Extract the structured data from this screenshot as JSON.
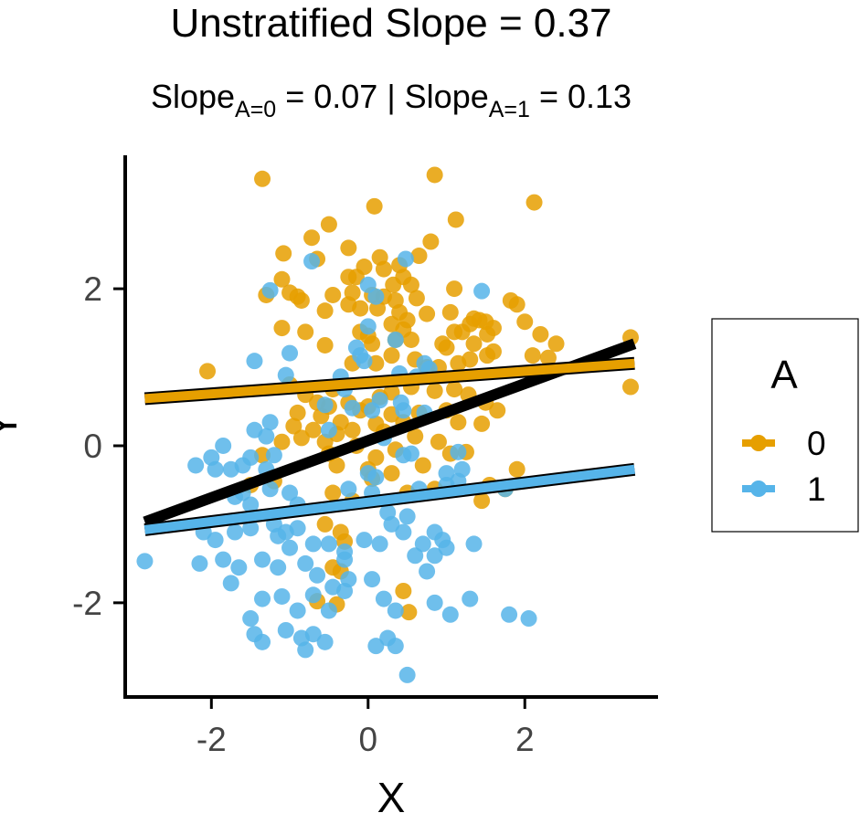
{
  "chart_data": {
    "type": "scatter",
    "title": "Unstratified Slope = 0.37",
    "subtitle": {
      "prefix": "Slope",
      "sub0": "A=0",
      "mid": " = 0.07 | Slope",
      "sub1": "A=1",
      "suffix": " = 0.13"
    },
    "xlabel": "X",
    "ylabel": "Y",
    "xlim": [
      -3.1,
      3.7
    ],
    "ylim": [
      -3.2,
      3.7
    ],
    "xticks": [
      {
        "value": -2,
        "label": "-2"
      },
      {
        "value": 0,
        "label": "0"
      },
      {
        "value": 2,
        "label": "2"
      }
    ],
    "yticks": [
      {
        "value": -2,
        "label": "-2"
      },
      {
        "value": 0,
        "label": "0"
      },
      {
        "value": 2,
        "label": "2"
      }
    ],
    "legend": {
      "title": "A",
      "position": "right",
      "entries": [
        {
          "label": "0",
          "color": "#E69F00"
        },
        {
          "label": "1",
          "color": "#56B4E9"
        }
      ]
    },
    "colors": {
      "A0": "#E69F00",
      "A1": "#56B4E9",
      "overall": "#000000"
    },
    "grid": false,
    "series": [
      {
        "name": "0",
        "color": "#E69F00",
        "points": [
          [
            -1.35,
            3.4
          ],
          [
            0.85,
            3.45
          ],
          [
            2.12,
            3.1
          ],
          [
            0.08,
            3.05
          ],
          [
            1.12,
            2.88
          ],
          [
            -0.5,
            2.82
          ],
          [
            -0.72,
            2.65
          ],
          [
            -0.25,
            2.52
          ],
          [
            0.8,
            2.6
          ],
          [
            0.65,
            2.42
          ],
          [
            -1.08,
            2.45
          ],
          [
            -0.65,
            2.38
          ],
          [
            0.15,
            2.4
          ],
          [
            0.4,
            2.3
          ],
          [
            -0.05,
            2.28
          ],
          [
            0.2,
            2.25
          ],
          [
            -0.25,
            2.15
          ],
          [
            -0.15,
            2.15
          ],
          [
            0.45,
            2.15
          ],
          [
            -1.1,
            2.12
          ],
          [
            0.32,
            2.05
          ],
          [
            0.55,
            2.05
          ],
          [
            1.1,
            2.0
          ],
          [
            -0.9,
            1.9
          ],
          [
            -1.0,
            1.95
          ],
          [
            -0.45,
            1.92
          ],
          [
            -0.2,
            1.95
          ],
          [
            0.05,
            1.92
          ],
          [
            0.2,
            1.9
          ],
          [
            0.35,
            1.85
          ],
          [
            0.62,
            1.88
          ],
          [
            -1.3,
            1.92
          ],
          [
            1.82,
            1.85
          ],
          [
            1.9,
            1.8
          ],
          [
            -0.85,
            1.85
          ],
          [
            -0.25,
            1.8
          ],
          [
            -0.1,
            1.75
          ],
          [
            0.12,
            1.75
          ],
          [
            0.4,
            1.7
          ],
          [
            1.35,
            1.62
          ],
          [
            1.42,
            1.6
          ],
          [
            1.5,
            1.58
          ],
          [
            1.05,
            1.7
          ],
          [
            0.75,
            1.68
          ],
          [
            0.5,
            1.6
          ],
          [
            0.3,
            1.55
          ],
          [
            -0.55,
            1.72
          ],
          [
            1.3,
            1.55
          ],
          [
            2.0,
            1.58
          ],
          [
            2.2,
            1.42
          ],
          [
            1.6,
            1.5
          ],
          [
            1.2,
            1.45
          ],
          [
            1.1,
            1.45
          ],
          [
            0.45,
            1.48
          ],
          [
            -0.1,
            1.45
          ],
          [
            0.0,
            1.4
          ],
          [
            1.52,
            1.42
          ],
          [
            -1.1,
            1.5
          ],
          [
            -0.8,
            1.45
          ],
          [
            0.35,
            1.35
          ],
          [
            0.55,
            1.35
          ],
          [
            0.95,
            1.3
          ],
          [
            1.35,
            1.3
          ],
          [
            2.4,
            1.3
          ],
          [
            3.35,
            1.38
          ],
          [
            2.1,
            1.15
          ],
          [
            2.3,
            1.12
          ],
          [
            1.6,
            1.2
          ],
          [
            1.52,
            1.15
          ],
          [
            1.0,
            1.25
          ],
          [
            0.6,
            1.1
          ],
          [
            0.3,
            1.15
          ],
          [
            -0.55,
            1.28
          ],
          [
            0.05,
            1.3
          ],
          [
            -0.2,
            1.05
          ],
          [
            0.1,
            1.05
          ],
          [
            0.75,
            1.0
          ],
          [
            0.9,
            1.0
          ],
          [
            1.15,
            1.05
          ],
          [
            1.3,
            1.1
          ],
          [
            2.95,
            1.05
          ],
          [
            -2.05,
            0.95
          ],
          [
            -1.0,
            0.78
          ],
          [
            -0.8,
            0.65
          ],
          [
            -0.45,
            0.72
          ],
          [
            0.3,
            0.68
          ],
          [
            0.15,
            0.62
          ],
          [
            0.55,
            0.75
          ],
          [
            0.85,
            0.7
          ],
          [
            1.1,
            0.72
          ],
          [
            1.28,
            0.65
          ],
          [
            -0.65,
            0.55
          ],
          [
            -0.5,
            0.5
          ],
          [
            -0.25,
            0.55
          ],
          [
            -0.1,
            0.45
          ],
          [
            0.0,
            0.5
          ],
          [
            0.3,
            0.4
          ],
          [
            0.65,
            0.42
          ],
          [
            1.0,
            0.45
          ],
          [
            1.5,
            0.55
          ],
          [
            1.65,
            0.45
          ],
          [
            -0.9,
            0.42
          ],
          [
            -0.6,
            0.38
          ],
          [
            -0.35,
            0.3
          ],
          [
            0.1,
            0.28
          ],
          [
            0.45,
            0.3
          ],
          [
            1.15,
            0.3
          ],
          [
            1.45,
            0.28
          ],
          [
            -0.95,
            0.25
          ],
          [
            -0.7,
            0.2
          ],
          [
            -0.4,
            0.15
          ],
          [
            -0.2,
            0.2
          ],
          [
            0.2,
            0.18
          ],
          [
            0.6,
            0.12
          ],
          [
            0.9,
            0.05
          ],
          [
            -1.1,
            0.05
          ],
          [
            -0.85,
            0.1
          ],
          [
            -0.55,
            0.05
          ],
          [
            -0.15,
            0.0
          ],
          [
            0.35,
            -0.05
          ],
          [
            1.05,
            -0.1
          ],
          [
            1.25,
            -0.08
          ],
          [
            -1.35,
            -0.12
          ],
          [
            -0.5,
            -0.1
          ],
          [
            0.1,
            -0.15
          ],
          [
            0.7,
            -0.25
          ],
          [
            -0.4,
            -0.25
          ],
          [
            0.0,
            -0.3
          ],
          [
            0.3,
            -0.35
          ],
          [
            -1.5,
            -0.5
          ],
          [
            -1.2,
            -0.45
          ],
          [
            0.05,
            -0.42
          ],
          [
            0.85,
            -0.55
          ],
          [
            1.55,
            -0.5
          ],
          [
            1.9,
            -0.3
          ],
          [
            3.35,
            0.75
          ],
          [
            -0.45,
            -0.6
          ],
          [
            -0.2,
            -0.7
          ],
          [
            0.5,
            -0.6
          ],
          [
            1.45,
            -0.7
          ],
          [
            1.75,
            -0.55
          ],
          [
            -0.55,
            -1.0
          ],
          [
            -0.35,
            -1.1
          ],
          [
            -0.3,
            -1.22
          ],
          [
            -0.45,
            -1.55
          ],
          [
            -0.35,
            -1.6
          ],
          [
            0.45,
            -1.85
          ],
          [
            -0.65,
            -1.98
          ],
          [
            -0.4,
            -2.02
          ],
          [
            0.52,
            -2.12
          ]
        ]
      },
      {
        "name": "1",
        "color": "#56B4E9",
        "points": [
          [
            -0.72,
            2.35
          ],
          [
            0.48,
            2.38
          ],
          [
            1.45,
            1.97
          ],
          [
            -1.25,
            1.98
          ],
          [
            0.0,
            2.05
          ],
          [
            0.1,
            1.9
          ],
          [
            0.0,
            1.52
          ],
          [
            -0.15,
            1.25
          ],
          [
            0.35,
            1.35
          ],
          [
            -0.1,
            1.15
          ],
          [
            -0.05,
            1.08
          ],
          [
            0.4,
            0.92
          ],
          [
            0.62,
            0.88
          ],
          [
            -0.35,
            0.88
          ],
          [
            -1.0,
            1.18
          ],
          [
            -1.45,
            1.08
          ],
          [
            -1.05,
            0.9
          ],
          [
            0.72,
            1.05
          ],
          [
            0.78,
            0.98
          ],
          [
            -0.3,
            0.72
          ],
          [
            -0.55,
            0.52
          ],
          [
            0.15,
            0.58
          ],
          [
            0.42,
            0.55
          ],
          [
            -0.2,
            0.48
          ],
          [
            0.05,
            0.45
          ],
          [
            0.45,
            0.45
          ],
          [
            0.72,
            0.42
          ],
          [
            -1.25,
            0.3
          ],
          [
            -1.45,
            0.2
          ],
          [
            -1.3,
            0.12
          ],
          [
            -1.5,
            -0.15
          ],
          [
            -1.2,
            -0.12
          ],
          [
            -1.6,
            -0.25
          ],
          [
            -1.3,
            -0.3
          ],
          [
            -1.85,
            0.0
          ],
          [
            -2.0,
            -0.15
          ],
          [
            -2.2,
            -0.25
          ],
          [
            -1.95,
            -0.3
          ],
          [
            -1.75,
            -0.3
          ],
          [
            -0.5,
            0.2
          ],
          [
            0.2,
            0.1
          ],
          [
            0.45,
            -0.12
          ],
          [
            0.55,
            -0.1
          ],
          [
            1.15,
            -0.08
          ],
          [
            1.2,
            -0.3
          ],
          [
            1.0,
            -0.35
          ],
          [
            0.65,
            -0.55
          ],
          [
            0.0,
            -0.35
          ],
          [
            0.1,
            -0.4
          ],
          [
            0.05,
            -0.6
          ],
          [
            -0.25,
            -0.55
          ],
          [
            -0.9,
            -0.75
          ],
          [
            -1.0,
            -0.6
          ],
          [
            -1.25,
            -0.55
          ],
          [
            -1.6,
            -0.6
          ],
          [
            -1.5,
            -0.75
          ],
          [
            -1.7,
            -0.65
          ],
          [
            1.0,
            -0.5
          ],
          [
            1.15,
            -0.45
          ],
          [
            1.75,
            -0.55
          ],
          [
            -2.1,
            -1.1
          ],
          [
            -1.95,
            -1.2
          ],
          [
            -1.7,
            -1.1
          ],
          [
            -1.5,
            -1.05
          ],
          [
            -1.2,
            -1.0
          ],
          [
            -1.05,
            -1.1
          ],
          [
            -0.9,
            -1.05
          ],
          [
            -0.7,
            -1.25
          ],
          [
            -1.0,
            -1.3
          ],
          [
            -1.15,
            -1.15
          ],
          [
            -0.8,
            -1.5
          ],
          [
            -0.5,
            -1.25
          ],
          [
            -0.3,
            -1.35
          ],
          [
            -0.3,
            -1.45
          ],
          [
            -0.05,
            -1.2
          ],
          [
            0.15,
            -1.25
          ],
          [
            0.25,
            -0.85
          ],
          [
            0.5,
            -0.9
          ],
          [
            0.3,
            -1.0
          ],
          [
            0.45,
            -1.1
          ],
          [
            0.6,
            -1.4
          ],
          [
            0.7,
            -1.25
          ],
          [
            0.85,
            -1.1
          ],
          [
            0.95,
            -1.2
          ],
          [
            1.0,
            -1.3
          ],
          [
            1.35,
            -1.25
          ],
          [
            -2.15,
            -1.5
          ],
          [
            -1.85,
            -1.45
          ],
          [
            -1.65,
            -1.55
          ],
          [
            -1.35,
            -1.45
          ],
          [
            -1.15,
            -1.55
          ],
          [
            -0.65,
            -1.65
          ],
          [
            -0.45,
            -1.8
          ],
          [
            -0.25,
            -1.7
          ],
          [
            0.05,
            -1.7
          ],
          [
            0.75,
            -1.6
          ],
          [
            0.85,
            -1.4
          ],
          [
            -2.85,
            -1.47
          ],
          [
            -1.75,
            -1.75
          ],
          [
            -1.35,
            -1.95
          ],
          [
            -1.1,
            -1.92
          ],
          [
            -0.9,
            -2.1
          ],
          [
            -0.7,
            -1.9
          ],
          [
            -0.5,
            -2.1
          ],
          [
            -0.3,
            -1.85
          ],
          [
            0.2,
            -1.95
          ],
          [
            0.35,
            -2.1
          ],
          [
            0.85,
            -2.0
          ],
          [
            1.05,
            -2.15
          ],
          [
            1.3,
            -1.95
          ],
          [
            1.8,
            -2.15
          ],
          [
            2.05,
            -2.2
          ],
          [
            -1.5,
            -2.2
          ],
          [
            -1.45,
            -2.4
          ],
          [
            -1.35,
            -2.5
          ],
          [
            -1.05,
            -2.35
          ],
          [
            -0.85,
            -2.45
          ],
          [
            -0.7,
            -2.4
          ],
          [
            -0.55,
            -2.5
          ],
          [
            -0.8,
            -2.6
          ],
          [
            0.1,
            -2.55
          ],
          [
            0.25,
            -2.45
          ],
          [
            0.35,
            -2.55
          ],
          [
            0.5,
            -2.92
          ]
        ]
      }
    ],
    "lines": [
      {
        "name": "overall",
        "color": "#000000",
        "x": [
          -2.85,
          3.4
        ],
        "y": [
          -0.97,
          1.3
        ]
      },
      {
        "name": "0",
        "color": "#E69F00",
        "x": [
          -2.85,
          3.4
        ],
        "y": [
          0.6,
          1.05
        ]
      },
      {
        "name": "1",
        "color": "#56B4E9",
        "x": [
          -2.85,
          3.4
        ],
        "y": [
          -1.07,
          -0.3
        ]
      }
    ]
  }
}
